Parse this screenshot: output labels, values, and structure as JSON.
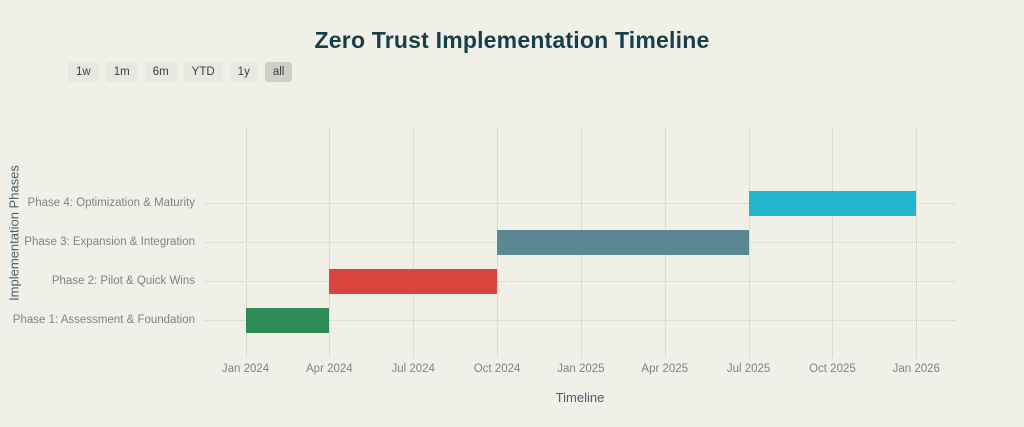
{
  "page": {
    "background_color": "#f0f0e9"
  },
  "rangeselector": {
    "buttons": [
      "1w",
      "1m",
      "6m",
      "YTD",
      "1y",
      "all"
    ],
    "active": "all",
    "active_bg_color": "#cfcfc8",
    "button_bg_color": "#e8e8e1",
    "text_color": "#33424e"
  },
  "chart_data": {
    "type": "gantt",
    "title": "Zero Trust Implementation Timeline",
    "xlabel": "Timeline",
    "ylabel": "Implementation Phases",
    "grid": true,
    "x_ticks": [
      {
        "label": "Jan 2024",
        "month": 0
      },
      {
        "label": "Apr 2024",
        "month": 3
      },
      {
        "label": "Jul 2024",
        "month": 6
      },
      {
        "label": "Oct 2024",
        "month": 9
      },
      {
        "label": "Jan 2025",
        "month": 12
      },
      {
        "label": "Apr 2025",
        "month": 15
      },
      {
        "label": "Jul 2025",
        "month": 18
      },
      {
        "label": "Oct 2025",
        "month": 21
      },
      {
        "label": "Jan 2026",
        "month": 24
      }
    ],
    "x_range": [
      "Jan 2024",
      "Jan 2026"
    ],
    "y_categories_top_to_bottom": [
      "Phase 4: Optimization & Maturity",
      "Phase 3: Expansion & Integration",
      "Phase 2: Pilot & Quick Wins",
      "Phase 1: Assessment & Foundation"
    ],
    "tasks": [
      {
        "label": "Phase 1: Assessment & Foundation",
        "start": "2024-01",
        "end": "2024-04",
        "start_month": 0,
        "end_month": 3,
        "row": 3,
        "color": "#2e8c58"
      },
      {
        "label": "Phase 2: Pilot & Quick Wins",
        "start": "2024-04",
        "end": "2024-10",
        "start_month": 3,
        "end_month": 9,
        "row": 2,
        "color": "#d9453e"
      },
      {
        "label": "Phase 3: Expansion & Integration",
        "start": "2024-10",
        "end": "2025-07",
        "start_month": 9,
        "end_month": 18,
        "row": 1,
        "color": "#5b8794"
      },
      {
        "label": "Phase 4: Optimization & Maturity",
        "start": "2025-07",
        "end": "2026-01",
        "start_month": 18,
        "end_month": 24,
        "row": 0,
        "color": "#1fb6ce"
      }
    ],
    "title_color": "#173f47",
    "tick_label_color": "#7d8388",
    "axis_title_color": "#4d5d66"
  }
}
